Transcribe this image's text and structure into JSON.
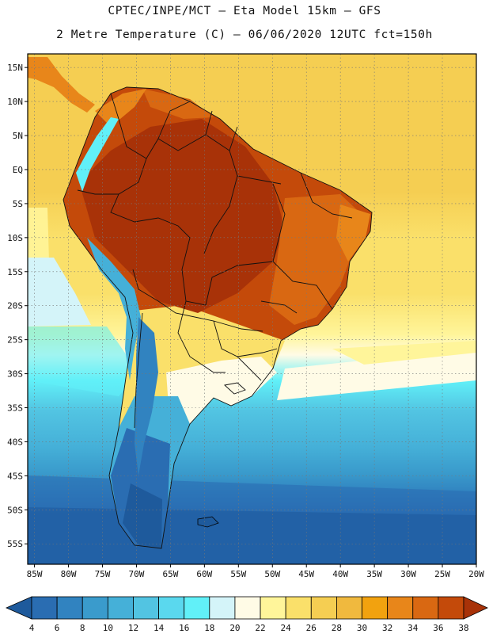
{
  "header": {
    "line1": "CPTEC/INPE/MCT —  Eta Model 15km — GFS",
    "line2": "2 Metre Temperature (C) — 06/06/2020 12UTC fct=150h"
  },
  "chart_data": {
    "type": "heatmap",
    "title": "2 Metre Temperature (C)",
    "model": "Eta Model 15km - GFS",
    "institution": "CPTEC/INPE/MCT",
    "run": "06/06/2020 12UTC",
    "forecast": "fct=150h",
    "units": "C",
    "lon_range": [
      -86,
      -20
    ],
    "lat_range": [
      -58,
      17
    ],
    "x_ticks": [
      "85W",
      "80W",
      "75W",
      "70W",
      "65W",
      "60W",
      "55W",
      "50W",
      "45W",
      "40W",
      "35W",
      "30W",
      "25W",
      "20W"
    ],
    "y_ticks": [
      "15N",
      "10N",
      "5N",
      "EQ",
      "5S",
      "10S",
      "15S",
      "20S",
      "25S",
      "30S",
      "35S",
      "40S",
      "45S",
      "50S",
      "55S"
    ],
    "grid": true,
    "colorbar_levels": [
      4,
      6,
      8,
      10,
      12,
      14,
      16,
      18,
      20,
      22,
      24,
      26,
      28,
      30,
      32,
      34,
      36,
      38
    ],
    "colorbar_colors": [
      "#1e5a9c",
      "#2a6db2",
      "#3183c0",
      "#3a9bcc",
      "#45b0d8",
      "#52c4e2",
      "#5ad8ee",
      "#61f0f8",
      "#d4f4f9",
      "#fffbe6",
      "#fff59a",
      "#fae06a",
      "#f5ce52",
      "#f0b93e",
      "#f2a20f",
      "#e8861a",
      "#d96812",
      "#c44a0a",
      "#a83208"
    ]
  }
}
